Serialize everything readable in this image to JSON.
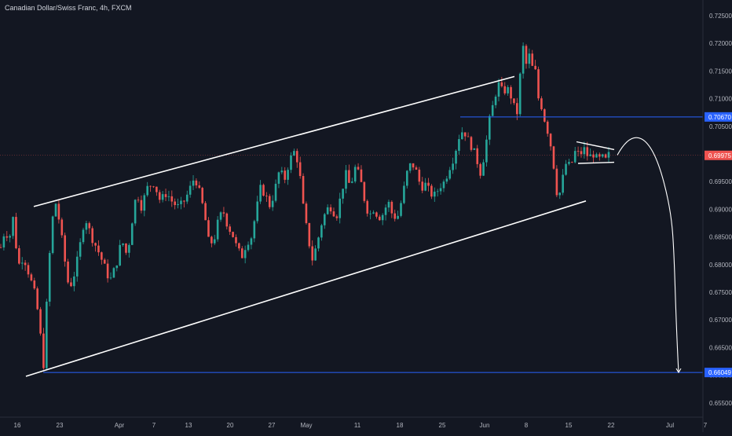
{
  "header": {
    "title": "Canadian Dollar/Swiss Franc, 4h, FXCM"
  },
  "colors": {
    "background": "#131722",
    "up_candle": "#26a69a",
    "down_candle": "#ef5350",
    "drawing": "#ffffff",
    "hline": "#2962ff",
    "axis_text": "#b2b5be",
    "current_price_bg": "#ef5350",
    "level_bg": "#2962ff"
  },
  "chart_data": {
    "type": "candlestick",
    "title": "Canadian Dollar/Swiss Franc, 4h, FXCM",
    "xlabel": "",
    "ylabel": "",
    "x_ticks": [
      "16",
      "23",
      "Apr",
      "7",
      "13",
      "20",
      "27",
      "May",
      "11",
      "18",
      "25",
      "Jun",
      "8",
      "15",
      "22",
      "Jul",
      "7"
    ],
    "y_ticks": [
      "0.72500",
      "0.72000",
      "0.71500",
      "0.71000",
      "0.70500",
      "0.70000",
      "0.69500",
      "0.69000",
      "0.68500",
      "0.68000",
      "0.67500",
      "0.67000",
      "0.66500",
      "0.66000",
      "0.65500"
    ],
    "ylim": [
      0.6535,
      0.7265
    ],
    "price_labels": {
      "upper_level": "0.70670",
      "current_price": "0.69975",
      "lower_level": "0.66049"
    },
    "horizontal_levels": [
      0.7067,
      0.66049
    ],
    "current_price": 0.69975,
    "price_path_points": [
      [
        0,
        0.6825
      ],
      [
        6,
        0.6862
      ],
      [
        12,
        0.6848
      ],
      [
        18,
        0.6895
      ],
      [
        22,
        0.6795
      ],
      [
        30,
        0.6815
      ],
      [
        38,
        0.6778
      ],
      [
        44,
        0.6748
      ],
      [
        50,
        0.67
      ],
      [
        55,
        0.6607
      ],
      [
        60,
        0.6745
      ],
      [
        65,
        0.686
      ],
      [
        70,
        0.6918
      ],
      [
        76,
        0.6875
      ],
      [
        82,
        0.6812
      ],
      [
        88,
        0.6755
      ],
      [
        94,
        0.678
      ],
      [
        100,
        0.6818
      ],
      [
        108,
        0.6888
      ],
      [
        116,
        0.6852
      ],
      [
        124,
        0.6828
      ],
      [
        132,
        0.68
      ],
      [
        140,
        0.677
      ],
      [
        148,
        0.68
      ],
      [
        155,
        0.6845
      ],
      [
        162,
        0.6815
      ],
      [
        168,
        0.6878
      ],
      [
        174,
        0.6932
      ],
      [
        180,
        0.6905
      ],
      [
        188,
        0.694
      ],
      [
        196,
        0.6948
      ],
      [
        204,
        0.6915
      ],
      [
        212,
        0.693
      ],
      [
        220,
        0.6912
      ],
      [
        228,
        0.6903
      ],
      [
        236,
        0.6918
      ],
      [
        242,
        0.6938
      ],
      [
        248,
        0.696
      ],
      [
        254,
        0.693
      ],
      [
        260,
        0.6895
      ],
      [
        266,
        0.6838
      ],
      [
        272,
        0.6842
      ],
      [
        278,
        0.688
      ],
      [
        284,
        0.6898
      ],
      [
        290,
        0.687
      ],
      [
        296,
        0.6855
      ],
      [
        302,
        0.6828
      ],
      [
        308,
        0.6815
      ],
      [
        314,
        0.684
      ],
      [
        320,
        0.685
      ],
      [
        326,
        0.6895
      ],
      [
        332,
        0.694
      ],
      [
        338,
        0.6925
      ],
      [
        344,
        0.6905
      ],
      [
        350,
        0.6935
      ],
      [
        356,
        0.6972
      ],
      [
        362,
        0.6952
      ],
      [
        368,
        0.6985
      ],
      [
        374,
        0.7005
      ],
      [
        380,
        0.6985
      ],
      [
        386,
        0.6905
      ],
      [
        392,
        0.685
      ],
      [
        398,
        0.6808
      ],
      [
        404,
        0.684
      ],
      [
        410,
        0.6878
      ],
      [
        416,
        0.69
      ],
      [
        422,
        0.6905
      ],
      [
        428,
        0.6885
      ],
      [
        434,
        0.6925
      ],
      [
        440,
        0.6965
      ],
      [
        446,
        0.694
      ],
      [
        452,
        0.6975
      ],
      [
        458,
        0.696
      ],
      [
        464,
        0.6918
      ],
      [
        470,
        0.6888
      ],
      [
        476,
        0.6902
      ],
      [
        482,
        0.6885
      ],
      [
        488,
        0.6892
      ],
      [
        494,
        0.6915
      ],
      [
        500,
        0.6888
      ],
      [
        506,
        0.6885
      ],
      [
        512,
        0.692
      ],
      [
        518,
        0.6965
      ],
      [
        524,
        0.6985
      ],
      [
        530,
        0.6968
      ],
      [
        536,
        0.694
      ],
      [
        542,
        0.6945
      ],
      [
        548,
        0.6928
      ],
      [
        554,
        0.6925
      ],
      [
        560,
        0.6942
      ],
      [
        566,
        0.695
      ],
      [
        572,
        0.6975
      ],
      [
        578,
        0.6995
      ],
      [
        584,
        0.703
      ],
      [
        590,
        0.7045
      ],
      [
        596,
        0.7025
      ],
      [
        602,
        0.701
      ],
      [
        608,
        0.6985
      ],
      [
        612,
        0.6965
      ],
      [
        616,
        0.6995
      ],
      [
        620,
        0.703
      ],
      [
        624,
        0.7068
      ],
      [
        628,
        0.709
      ],
      [
        634,
        0.7128
      ],
      [
        640,
        0.7112
      ],
      [
        646,
        0.7118
      ],
      [
        652,
        0.71
      ],
      [
        656,
        0.7075
      ],
      [
        660,
        0.7075
      ],
      [
        663,
        0.7165
      ],
      [
        666,
        0.7193
      ],
      [
        670,
        0.7162
      ],
      [
        674,
        0.7178
      ],
      [
        678,
        0.7155
      ],
      [
        682,
        0.7148
      ],
      [
        686,
        0.7095
      ],
      [
        690,
        0.7085
      ],
      [
        694,
        0.7058
      ],
      [
        698,
        0.7038
      ],
      [
        702,
        0.701
      ],
      [
        706,
        0.6968
      ],
      [
        710,
        0.6918
      ],
      [
        714,
        0.6935
      ],
      [
        718,
        0.6968
      ],
      [
        722,
        0.699
      ],
      [
        726,
        0.6972
      ],
      [
        730,
        0.6995
      ],
      [
        734,
        0.701
      ],
      [
        738,
        0.6992
      ],
      [
        742,
        0.7012
      ],
      [
        746,
        0.7004
      ],
      [
        750,
        0.699
      ],
      [
        754,
        0.7004
      ],
      [
        758,
        0.6994
      ],
      [
        762,
        0.6988
      ],
      [
        766,
        0.6996
      ],
      [
        770,
        0.6985
      ],
      [
        774,
        0.6998
      ]
    ],
    "drawings": {
      "channel_upper": [
        [
          43,
          0.6905
        ],
        [
          655,
          0.714
        ]
      ],
      "channel_lower": [
        [
          33,
          0.6598
        ],
        [
          746,
          0.6915
        ]
      ],
      "triangle_upper": [
        [
          734,
          0.7022
        ],
        [
          782,
          0.7008
        ]
      ],
      "triangle_lower": [
        [
          736,
          0.6983
        ],
        [
          782,
          0.6985
        ]
      ],
      "projection_curve": [
        [
          786,
          0.6998
        ],
        [
          806,
          0.705
        ],
        [
          828,
          0.704
        ],
        [
          845,
          0.695
        ],
        [
          856,
          0.682
        ],
        [
          864,
          0.6605
        ]
      ]
    },
    "candle_count": 200
  }
}
